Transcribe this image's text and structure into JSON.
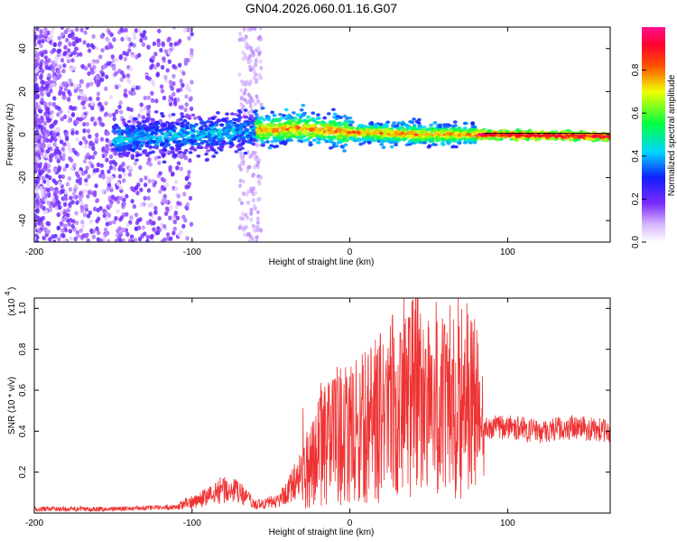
{
  "title": "GN04.2026.060.01.16.G07",
  "chart_data": [
    {
      "type": "heatmap",
      "xlabel": "Height of straight line (km)",
      "ylabel": "Frequency (Hz)",
      "xlim": [
        -200,
        165
      ],
      "ylim": [
        -50,
        50
      ],
      "xticks": [
        -200,
        -100,
        0,
        100
      ],
      "yticks": [
        -40,
        -20,
        0,
        20,
        40
      ],
      "colorbar": {
        "label": "Normalized spectral amplitude",
        "range": [
          0,
          1
        ],
        "ticks": [
          "0.0",
          "0.2",
          "0.4",
          "0.6",
          "0.8"
        ],
        "stops": [
          "#ffffff",
          "#8a2be2",
          "#0000ff",
          "#00ffff",
          "#00ff00",
          "#ffff00",
          "#ff0000",
          "#ff00ff"
        ]
      },
      "ridge": {
        "description_points": [
          [
            -150,
            -2
          ],
          [
            -100,
            0
          ],
          [
            -60,
            2
          ],
          [
            -30,
            3
          ],
          [
            0,
            1
          ],
          [
            50,
            0
          ],
          [
            90,
            0
          ],
          [
            165,
            -1
          ]
        ]
      },
      "grid": false
    },
    {
      "type": "line",
      "xlabel": "Height of straight line (km)",
      "ylabel": "SNR (10 * v/v)",
      "scale_label": "(x10",
      "scale_exp": "4",
      "xlim": [
        -200,
        165
      ],
      "ylim": [
        0,
        1.05
      ],
      "xticks": [
        -200,
        -100,
        0,
        100
      ],
      "yticks": [
        0.2,
        0.4,
        0.6,
        0.8,
        1.0
      ],
      "color": "#ee3333",
      "envelope": [
        [
          -200,
          0.02
        ],
        [
          -150,
          0.02
        ],
        [
          -110,
          0.03
        ],
        [
          -90,
          0.08
        ],
        [
          -80,
          0.12
        ],
        [
          -70,
          0.1
        ],
        [
          -60,
          0.04
        ],
        [
          -45,
          0.06
        ],
        [
          -30,
          0.2
        ],
        [
          -20,
          0.3
        ],
        [
          -10,
          0.38
        ],
        [
          0,
          0.38
        ],
        [
          10,
          0.42
        ],
        [
          20,
          0.48
        ],
        [
          30,
          0.55
        ],
        [
          40,
          0.6
        ],
        [
          50,
          0.55
        ],
        [
          60,
          0.55
        ],
        [
          70,
          0.58
        ],
        [
          80,
          0.5
        ],
        [
          85,
          0.4
        ],
        [
          90,
          0.42
        ],
        [
          100,
          0.42
        ],
        [
          120,
          0.4
        ],
        [
          140,
          0.42
        ],
        [
          165,
          0.4
        ]
      ],
      "peaks": [
        [
          -10,
          0.65
        ],
        [
          25,
          0.72
        ],
        [
          32,
          0.88
        ],
        [
          40,
          1.04
        ],
        [
          48,
          0.8
        ],
        [
          60,
          0.92
        ],
        [
          65,
          0.75
        ],
        [
          72,
          0.72
        ]
      ]
    }
  ]
}
